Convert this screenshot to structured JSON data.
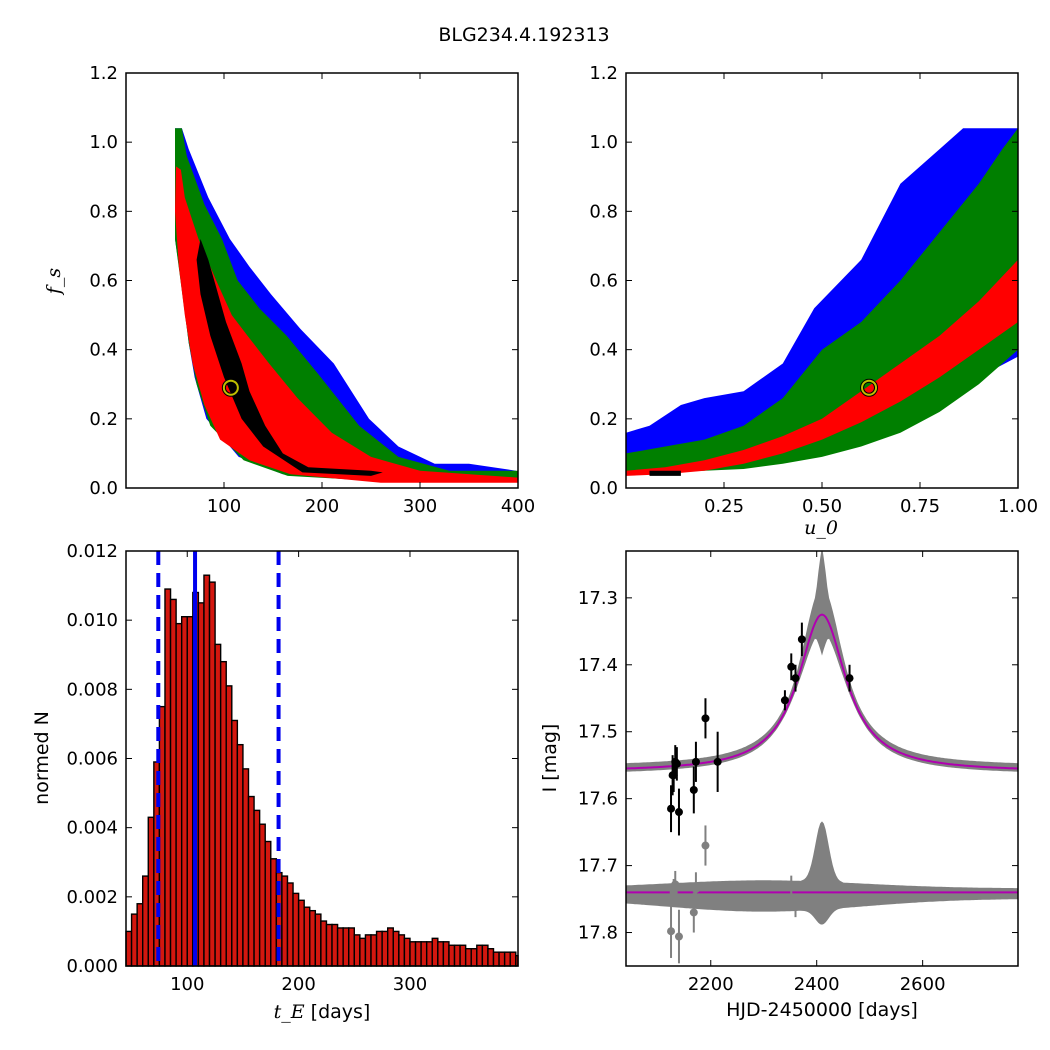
{
  "figure": {
    "title": "BLG234.4.192313"
  },
  "colors": {
    "blue": "#0000ff",
    "green": "#007f00",
    "red": "#ff0000",
    "black": "#000000",
    "hist_fill": "#d3170f",
    "vline": "#0000ee",
    "band": "#808080",
    "model": "#b000b0",
    "data_point": "#000000",
    "residual_point": "#808080",
    "best_marker": "#bfbf00"
  },
  "chart_data": [
    {
      "id": "panel-fs-tE",
      "type": "heatmap",
      "xlabel": "",
      "ylabel": "f_s",
      "xlim": [
        0,
        400
      ],
      "ylim": [
        0,
        1.2
      ],
      "xticks": [
        100,
        200,
        300,
        400
      ],
      "yticks": [
        0.0,
        0.2,
        0.4,
        0.6,
        0.8,
        1.0,
        1.2
      ],
      "legend": "none",
      "best_fit": {
        "x": 107,
        "y": 0.29
      },
      "confidence_regions": [
        {
          "name": "",
          "color_key": "blue",
          "points": [
            [
              50,
              1.04
            ],
            [
              57,
              1.04
            ],
            [
              64,
              0.98
            ],
            [
              84,
              0.84
            ],
            [
              106,
              0.72
            ],
            [
              126,
              0.64
            ],
            [
              148,
              0.56
            ],
            [
              178,
              0.46
            ],
            [
              212,
              0.36
            ],
            [
              248,
              0.2
            ],
            [
              278,
              0.12
            ],
            [
              315,
              0.07
            ],
            [
              350,
              0.07
            ],
            [
              398,
              0.05
            ],
            [
              400,
              0.02
            ],
            [
              250,
              0.02
            ],
            [
              160,
              0.04
            ],
            [
              115,
              0.09
            ],
            [
              82,
              0.2
            ],
            [
              70,
              0.32
            ],
            [
              64,
              0.42
            ],
            [
              57,
              0.58
            ],
            [
              50,
              0.72
            ]
          ]
        },
        {
          "name": "",
          "color_key": "green",
          "points": [
            [
              50,
              1.04
            ],
            [
              57,
              1.04
            ],
            [
              62,
              0.96
            ],
            [
              80,
              0.82
            ],
            [
              98,
              0.72
            ],
            [
              114,
              0.6
            ],
            [
              136,
              0.52
            ],
            [
              164,
              0.44
            ],
            [
              196,
              0.33
            ],
            [
              238,
              0.18
            ],
            [
              278,
              0.09
            ],
            [
              330,
              0.05
            ],
            [
              400,
              0.05
            ],
            [
              400,
              0.02
            ],
            [
              260,
              0.02
            ],
            [
              165,
              0.035
            ],
            [
              120,
              0.08
            ],
            [
              86,
              0.18
            ],
            [
              72,
              0.3
            ],
            [
              64,
              0.42
            ],
            [
              58,
              0.55
            ],
            [
              50,
              0.72
            ]
          ]
        },
        {
          "name": "",
          "color_key": "red",
          "points": [
            [
              51,
              0.93
            ],
            [
              56,
              0.92
            ],
            [
              60,
              0.84
            ],
            [
              74,
              0.72
            ],
            [
              92,
              0.6
            ],
            [
              108,
              0.5
            ],
            [
              124,
              0.44
            ],
            [
              146,
              0.36
            ],
            [
              175,
              0.26
            ],
            [
              210,
              0.16
            ],
            [
              250,
              0.09
            ],
            [
              300,
              0.05
            ],
            [
              400,
              0.03
            ],
            [
              400,
              0.015
            ],
            [
              260,
              0.015
            ],
            [
              168,
              0.04
            ],
            [
              126,
              0.08
            ],
            [
              96,
              0.14
            ],
            [
              80,
              0.24
            ],
            [
              68,
              0.36
            ],
            [
              60,
              0.5
            ],
            [
              54,
              0.64
            ],
            [
              50,
              0.8
            ]
          ]
        },
        {
          "name": "",
          "color_key": "black",
          "points": [
            [
              76,
              0.72
            ],
            [
              84,
              0.66
            ],
            [
              92,
              0.58
            ],
            [
              102,
              0.48
            ],
            [
              110,
              0.42
            ],
            [
              118,
              0.36
            ],
            [
              126,
              0.28
            ],
            [
              142,
              0.18
            ],
            [
              160,
              0.1
            ],
            [
              186,
              0.06
            ],
            [
              250,
              0.05
            ],
            [
              262,
              0.045
            ],
            [
              250,
              0.035
            ],
            [
              180,
              0.045
            ],
            [
              140,
              0.12
            ],
            [
              118,
              0.2
            ],
            [
              100,
              0.32
            ],
            [
              86,
              0.44
            ],
            [
              76,
              0.56
            ],
            [
              72,
              0.66
            ]
          ]
        }
      ]
    },
    {
      "id": "panel-fs-u0",
      "type": "heatmap",
      "xlabel": "u_0",
      "ylabel": "",
      "xlim": [
        0,
        1.0
      ],
      "ylim": [
        0,
        1.2
      ],
      "xticks": [
        0.25,
        0.5,
        0.75,
        1.0
      ],
      "yticks": [
        0.0,
        0.2,
        0.4,
        0.6,
        0.8,
        1.0,
        1.2
      ],
      "legend": "none",
      "best_fit": {
        "x": 0.62,
        "y": 0.29
      },
      "confidence_regions": [
        {
          "name": "",
          "color_key": "blue",
          "points": [
            [
              0.0,
              0.16
            ],
            [
              0.06,
              0.18
            ],
            [
              0.14,
              0.24
            ],
            [
              0.2,
              0.26
            ],
            [
              0.3,
              0.28
            ],
            [
              0.4,
              0.36
            ],
            [
              0.48,
              0.52
            ],
            [
              0.6,
              0.66
            ],
            [
              0.7,
              0.88
            ],
            [
              0.8,
              0.98
            ],
            [
              0.86,
              1.04
            ],
            [
              1.0,
              1.04
            ],
            [
              1.0,
              0.38
            ],
            [
              0.9,
              0.32
            ],
            [
              0.8,
              0.26
            ],
            [
              0.7,
              0.2
            ],
            [
              0.6,
              0.16
            ],
            [
              0.5,
              0.12
            ],
            [
              0.4,
              0.09
            ],
            [
              0.3,
              0.07
            ],
            [
              0.2,
              0.06
            ],
            [
              0.1,
              0.05
            ],
            [
              0.0,
              0.05
            ]
          ]
        },
        {
          "name": "",
          "color_key": "green",
          "points": [
            [
              0.0,
              0.1
            ],
            [
              0.1,
              0.12
            ],
            [
              0.2,
              0.14
            ],
            [
              0.3,
              0.18
            ],
            [
              0.4,
              0.26
            ],
            [
              0.5,
              0.4
            ],
            [
              0.6,
              0.48
            ],
            [
              0.7,
              0.6
            ],
            [
              0.8,
              0.74
            ],
            [
              0.9,
              0.88
            ],
            [
              0.96,
              0.98
            ],
            [
              1.0,
              1.04
            ],
            [
              1.0,
              0.4
            ],
            [
              0.9,
              0.3
            ],
            [
              0.8,
              0.22
            ],
            [
              0.7,
              0.16
            ],
            [
              0.6,
              0.12
            ],
            [
              0.5,
              0.09
            ],
            [
              0.4,
              0.07
            ],
            [
              0.3,
              0.055
            ],
            [
              0.2,
              0.05
            ],
            [
              0.1,
              0.045
            ],
            [
              0.0,
              0.04
            ]
          ]
        },
        {
          "name": "",
          "color_key": "red",
          "points": [
            [
              0.0,
              0.05
            ],
            [
              0.1,
              0.06
            ],
            [
              0.2,
              0.08
            ],
            [
              0.3,
              0.11
            ],
            [
              0.4,
              0.15
            ],
            [
              0.5,
              0.2
            ],
            [
              0.6,
              0.28
            ],
            [
              0.7,
              0.36
            ],
            [
              0.8,
              0.44
            ],
            [
              0.9,
              0.54
            ],
            [
              1.0,
              0.66
            ],
            [
              1.0,
              0.48
            ],
            [
              0.9,
              0.4
            ],
            [
              0.8,
              0.32
            ],
            [
              0.7,
              0.25
            ],
            [
              0.6,
              0.19
            ],
            [
              0.5,
              0.14
            ],
            [
              0.4,
              0.1
            ],
            [
              0.3,
              0.07
            ],
            [
              0.2,
              0.05
            ],
            [
              0.1,
              0.04
            ],
            [
              0.0,
              0.035
            ]
          ]
        },
        {
          "name": "",
          "color_key": "black",
          "points": [
            [
              0.06,
              0.05
            ],
            [
              0.14,
              0.05
            ],
            [
              0.14,
              0.035
            ],
            [
              0.06,
              0.035
            ]
          ]
        }
      ]
    },
    {
      "id": "panel-tE-hist",
      "type": "bar",
      "xlabel": "t_E",
      "xlabel_unit": "[days]",
      "ylabel": "normed N",
      "xlim": [
        45,
        397
      ],
      "ylim": [
        0,
        0.012
      ],
      "xticks": [
        100,
        200,
        300
      ],
      "yticks": [
        0.0,
        0.002,
        0.004,
        0.006,
        0.008,
        0.01,
        0.012
      ],
      "ytick_labels": [
        "0.000",
        "0.002",
        "0.004",
        "0.006",
        "0.008",
        "0.010",
        "0.012"
      ],
      "legend": "none",
      "bin_start": 45,
      "bin_width": 5,
      "values": [
        0.001,
        0.0015,
        0.0018,
        0.0026,
        0.0043,
        0.0059,
        0.0075,
        0.0109,
        0.0106,
        0.0099,
        0.0101,
        0.0101,
        0.0108,
        0.0105,
        0.0113,
        0.0111,
        0.0093,
        0.0088,
        0.0081,
        0.0071,
        0.0064,
        0.0057,
        0.0049,
        0.0045,
        0.0041,
        0.0036,
        0.0031,
        0.0027,
        0.0026,
        0.0024,
        0.0021,
        0.0019,
        0.0017,
        0.0016,
        0.0015,
        0.0013,
        0.0012,
        0.0012,
        0.0011,
        0.0011,
        0.0011,
        0.0009,
        0.0008,
        0.0009,
        0.0009,
        0.001,
        0.001,
        0.0011,
        0.001,
        0.0009,
        0.0008,
        0.0007,
        0.0007,
        0.0007,
        0.0007,
        0.0008,
        0.0007,
        0.0007,
        0.0006,
        0.0006,
        0.0006,
        0.0005,
        0.0005,
        0.0006,
        0.0006,
        0.0005,
        0.0004,
        0.0004,
        0.0004,
        0.0004,
        0.0003
      ],
      "vlines": [
        {
          "x": 107,
          "style": "solid"
        },
        {
          "x": 74,
          "style": "dashed"
        },
        {
          "x": 182,
          "style": "dashed"
        }
      ]
    },
    {
      "id": "panel-lightcurve",
      "type": "scatter",
      "xlabel": "HJD-2450000 [days]",
      "ylabel": "I [mag]",
      "xlim": [
        2040,
        2780
      ],
      "ylim": [
        17.85,
        17.23
      ],
      "y_inverted": true,
      "xticks": [
        2200,
        2400,
        2600
      ],
      "yticks": [
        17.3,
        17.4,
        17.5,
        17.6,
        17.7,
        17.8
      ],
      "legend": "none",
      "model": {
        "t0": 2410,
        "baseline": 17.56,
        "amp": 0.235,
        "width": 55
      },
      "residual_baseline": 17.74,
      "series": [
        {
          "name": "",
          "color_key": "data_point",
          "points": [
            {
              "x": 2125,
              "y": 17.615,
              "err": 0.035
            },
            {
              "x": 2128,
              "y": 17.565,
              "err": 0.03
            },
            {
              "x": 2130,
              "y": 17.565,
              "err": 0.025
            },
            {
              "x": 2133,
              "y": 17.545,
              "err": 0.025
            },
            {
              "x": 2136,
              "y": 17.548,
              "err": 0.025
            },
            {
              "x": 2140,
              "y": 17.62,
              "err": 0.035
            },
            {
              "x": 2168,
              "y": 17.587,
              "err": 0.035
            },
            {
              "x": 2172,
              "y": 17.545,
              "err": 0.03
            },
            {
              "x": 2190,
              "y": 17.48,
              "err": 0.03
            },
            {
              "x": 2213,
              "y": 17.545,
              "err": 0.045
            },
            {
              "x": 2340,
              "y": 17.453,
              "err": 0.015
            },
            {
              "x": 2352,
              "y": 17.403,
              "err": 0.02
            },
            {
              "x": 2360,
              "y": 17.42,
              "err": 0.02
            },
            {
              "x": 2372,
              "y": 17.362,
              "err": 0.025
            },
            {
              "x": 2462,
              "y": 17.42,
              "err": 0.02
            }
          ]
        },
        {
          "name": "",
          "color_key": "residual_point",
          "points": [
            {
              "x": 2125,
              "y": 17.798,
              "err": 0.04
            },
            {
              "x": 2130,
              "y": 17.74,
              "err": 0.02
            },
            {
              "x": 2133,
              "y": 17.728,
              "err": 0.02
            },
            {
              "x": 2140,
              "y": 17.806,
              "err": 0.04
            },
            {
              "x": 2168,
              "y": 17.77,
              "err": 0.03
            },
            {
              "x": 2172,
              "y": 17.735,
              "err": 0.025
            },
            {
              "x": 2190,
              "y": 17.67,
              "err": 0.03
            },
            {
              "x": 2352,
              "y": 17.73,
              "err": 0.015
            },
            {
              "x": 2360,
              "y": 17.762,
              "err": 0.015
            }
          ]
        }
      ]
    }
  ]
}
